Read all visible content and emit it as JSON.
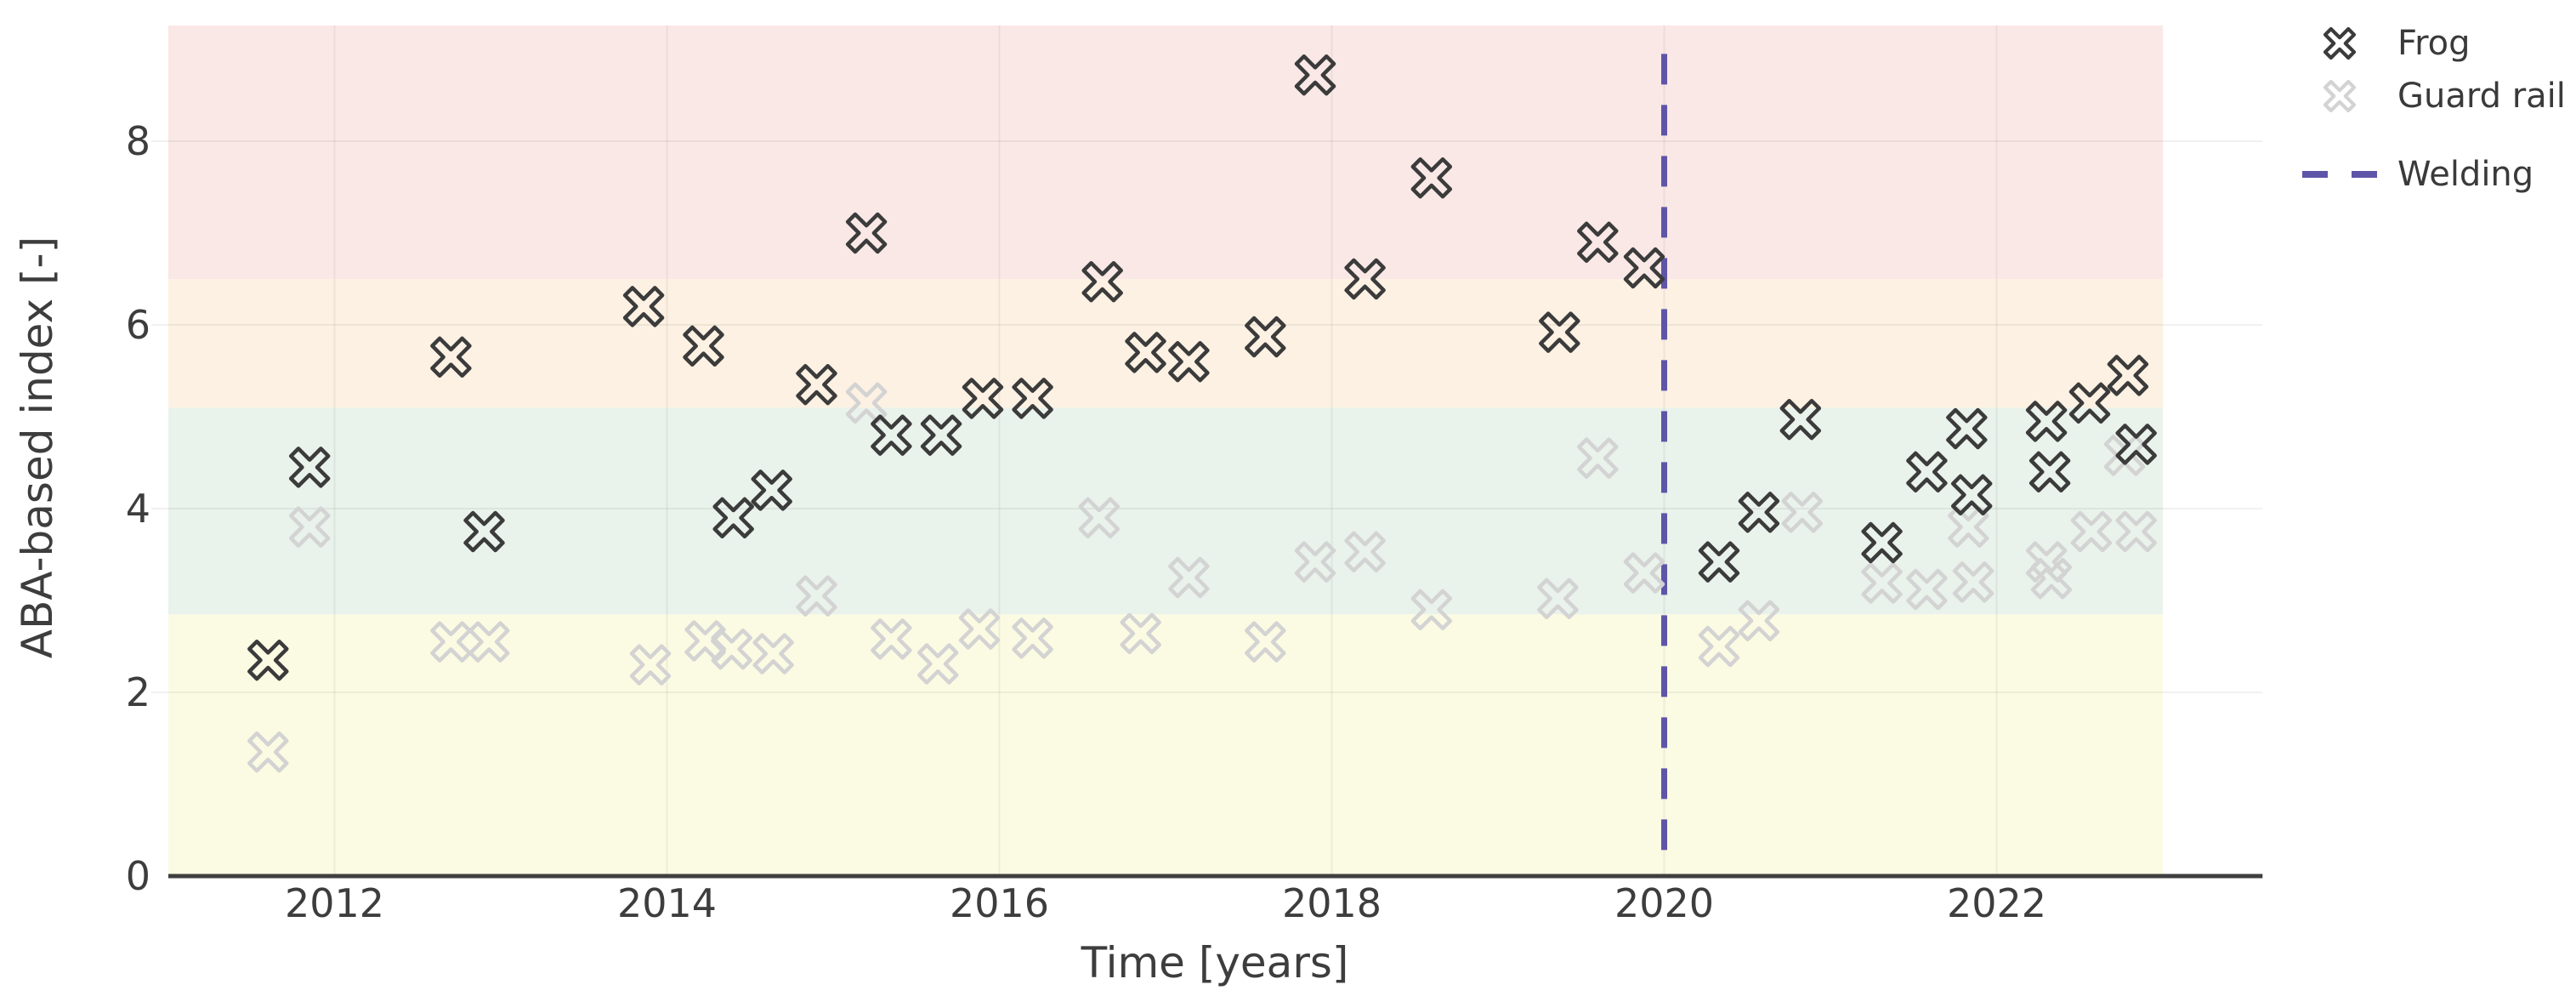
{
  "axes": {
    "x_title": "Time [years]",
    "y_title": "ABA-based index [-]",
    "x_ticks": [
      2012,
      2014,
      2016,
      2018,
      2020,
      2022
    ],
    "y_ticks": [
      0,
      2,
      4,
      6,
      8
    ],
    "xlim": [
      2011,
      2023.6
    ],
    "ylim": [
      0,
      9.26
    ],
    "bands_x_range": [
      2011,
      2023
    ],
    "grid": true,
    "text_color": "#3d3d3d",
    "spine_color": "#3f3f3f",
    "gridline_color": "rgba(60,60,60,0.07)"
  },
  "chart_data": {
    "type": "scatter",
    "title": "",
    "xlabel": "Time [years]",
    "ylabel": "ABA-based index [-]",
    "legend_position": "upper right outside",
    "bands": [
      {
        "name": "band-yellow",
        "from": 0,
        "to": 2.85,
        "color": "#fbfbe3"
      },
      {
        "name": "band-green",
        "from": 2.85,
        "to": 5.1,
        "color": "#e9f2eb"
      },
      {
        "name": "band-orange",
        "from": 5.1,
        "to": 6.5,
        "color": "#fcf1e2"
      },
      {
        "name": "band-red",
        "from": 6.5,
        "to": 9.26,
        "color": "#f9e8e6"
      }
    ],
    "series": [
      {
        "name": "Guard rail",
        "marker": "X-outline",
        "edge_color": "#d3d3d3",
        "points": [
          [
            2011.6,
            1.35
          ],
          [
            2011.85,
            3.8
          ],
          [
            2012.7,
            2.55
          ],
          [
            2012.93,
            2.55
          ],
          [
            2013.9,
            2.3
          ],
          [
            2014.23,
            2.56
          ],
          [
            2014.39,
            2.47
          ],
          [
            2014.64,
            2.42
          ],
          [
            2014.9,
            3.05
          ],
          [
            2015.2,
            5.15
          ],
          [
            2015.35,
            2.58
          ],
          [
            2015.63,
            2.31
          ],
          [
            2015.88,
            2.69
          ],
          [
            2016.2,
            2.59
          ],
          [
            2016.6,
            3.9
          ],
          [
            2016.85,
            2.64
          ],
          [
            2017.14,
            3.25
          ],
          [
            2017.6,
            2.55
          ],
          [
            2017.9,
            3.42
          ],
          [
            2018.2,
            3.53
          ],
          [
            2018.6,
            2.9
          ],
          [
            2019.36,
            3.02
          ],
          [
            2019.6,
            4.55
          ],
          [
            2019.88,
            3.3
          ],
          [
            2020.33,
            2.5
          ],
          [
            2020.57,
            2.78
          ],
          [
            2020.83,
            3.96
          ],
          [
            2021.31,
            3.19
          ],
          [
            2021.58,
            3.12
          ],
          [
            2021.83,
            3.8
          ],
          [
            2021.86,
            3.2
          ],
          [
            2022.3,
            3.42
          ],
          [
            2022.33,
            3.24
          ],
          [
            2022.57,
            3.75
          ],
          [
            2022.77,
            4.58
          ],
          [
            2022.84,
            3.75
          ]
        ]
      },
      {
        "name": "Frog",
        "marker": "X-outline",
        "edge_color": "#3b3b3b",
        "points": [
          [
            2011.6,
            2.35
          ],
          [
            2011.85,
            4.45
          ],
          [
            2012.7,
            5.65
          ],
          [
            2012.9,
            3.75
          ],
          [
            2013.86,
            6.2
          ],
          [
            2014.22,
            5.77
          ],
          [
            2014.4,
            3.9
          ],
          [
            2014.63,
            4.2
          ],
          [
            2014.9,
            5.35
          ],
          [
            2015.2,
            7.0
          ],
          [
            2015.35,
            4.8
          ],
          [
            2015.65,
            4.8
          ],
          [
            2015.9,
            5.2
          ],
          [
            2016.2,
            5.2
          ],
          [
            2016.62,
            6.47
          ],
          [
            2016.88,
            5.7
          ],
          [
            2017.14,
            5.6
          ],
          [
            2017.6,
            5.87
          ],
          [
            2017.9,
            8.72
          ],
          [
            2018.2,
            6.5
          ],
          [
            2018.6,
            7.6
          ],
          [
            2019.37,
            5.92
          ],
          [
            2019.6,
            6.9
          ],
          [
            2019.88,
            6.62
          ],
          [
            2020.33,
            3.42
          ],
          [
            2020.57,
            3.96
          ],
          [
            2020.82,
            4.97
          ],
          [
            2021.31,
            3.63
          ],
          [
            2021.58,
            4.4
          ],
          [
            2021.82,
            4.87
          ],
          [
            2021.85,
            4.15
          ],
          [
            2022.3,
            4.95
          ],
          [
            2022.32,
            4.4
          ],
          [
            2022.56,
            5.15
          ],
          [
            2022.79,
            5.45
          ],
          [
            2022.84,
            4.7
          ]
        ]
      }
    ],
    "vline": {
      "name": "Welding",
      "x": 2020,
      "y_from": 0.2,
      "y_to": 8.95,
      "color": "#5f55a8",
      "dash": [
        36,
        24
      ],
      "width": 7
    }
  },
  "legend": {
    "marker_items": [
      {
        "label": "Frog"
      },
      {
        "label": "Guard rail"
      }
    ],
    "line_item": {
      "label": "Welding"
    }
  }
}
